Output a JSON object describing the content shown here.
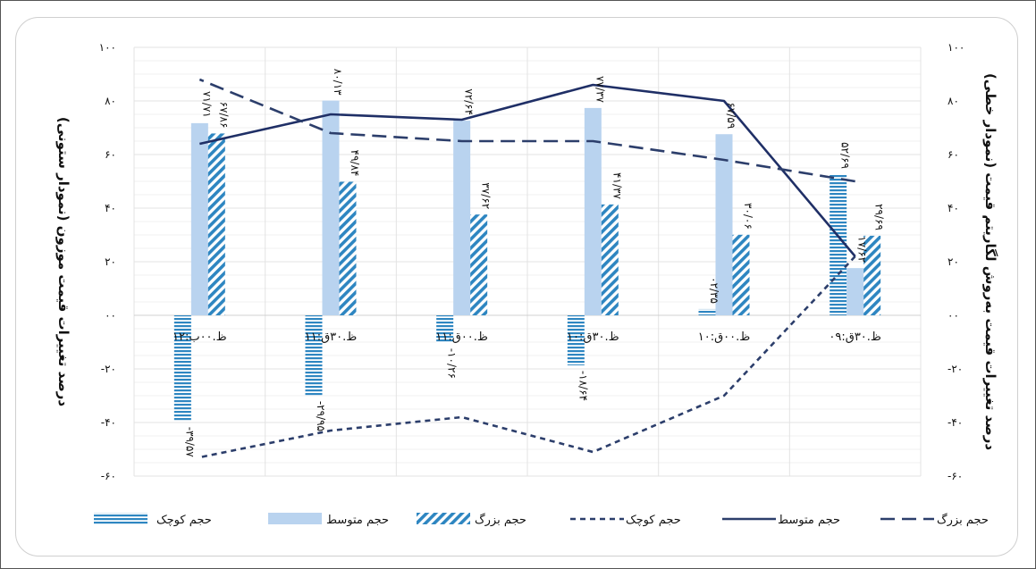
{
  "chart_data": {
    "type": "bar",
    "direction": "rtl",
    "categories": [
      "ظ.۳۰ق:۰۹",
      "ظ.۰۰ق:۱۰",
      "ظ.۳۰ق:۱۰",
      "ظ.۰۰ق:۱۱",
      "ظ.۳۰ق:۱۱",
      "ظ.۰۰ب:۱۲"
    ],
    "y_left": {
      "label": "درصد تغییرات قیمت موزون (نمودار ستونی)",
      "ylim": [
        -60,
        100
      ],
      "ticks": [
        -60,
        -40,
        -20,
        0,
        20,
        40,
        60,
        80,
        100
      ],
      "tick_labels": [
        "-۶۰",
        "-۴۰",
        "-۲۰",
        "۰۰",
        "۲۰",
        "۴۰",
        "۶۰",
        "۸۰",
        "۱۰۰"
      ]
    },
    "y_right": {
      "label": "درصد تغییرات قیمت به‌روش لگاریتم قیمت (نمودار خطی)",
      "ylim": [
        -60,
        100
      ],
      "ticks": [
        -60,
        -40,
        -20,
        0,
        20,
        40,
        60,
        80,
        100
      ],
      "tick_labels": [
        "-۶۰",
        "-۴۰",
        "-۲۰",
        "۰۰",
        "۲۰",
        "۴۰",
        "۶۰",
        "۸۰",
        "۱۰۰"
      ]
    },
    "bar_series": [
      {
        "name": "حجم کوچک",
        "color": "#2e86c1",
        "pattern": "horizontal-stripes",
        "values": [
          52.69,
          2.35,
          -18.64,
          -10.26,
          -29.95,
          -39.57
        ],
        "labels": [
          "۵۲/۶۹",
          "۰۲/۳۵",
          "-۱۸/۶۴",
          "-۱۰/۲۶",
          "-۲۹/۹۵",
          "-۳۹/۵۷"
        ]
      },
      {
        "name": "حجم متوسط",
        "color": "#b9d3ef",
        "pattern": "solid",
        "values": [
          17.62,
          67.59,
          77.37,
          72.64,
          80.13,
          71.71
        ],
        "labels": [
          "۱۷/۶۲",
          "۶۷/۵۹",
          "۷۷/۳۷",
          "۷۲/۶۴",
          "۸۰/۱۳",
          "۷۱/۷۱"
        ]
      },
      {
        "name": "حجم بزرگ",
        "color": "#2e86c1",
        "pattern": "diagonal-stripes",
        "values": [
          29.69,
          30.06,
          41.37,
          37.62,
          49.84,
          67.86
        ],
        "labels": [
          "۲۹/۶۹",
          "۳۰/۰۶",
          "۴۱/۳۷",
          "۳۷/۶۲",
          "۴۹/۸۴",
          "۶۷/۸۶"
        ]
      }
    ],
    "line_series": [
      {
        "name": "حجم کوچک",
        "style": "short-dash",
        "color": "#2c3e6b",
        "values": [
          22,
          -30,
          -51,
          -38,
          -43,
          -53
        ]
      },
      {
        "name": "حجم متوسط",
        "style": "solid",
        "color": "#1f2f66",
        "values": [
          22,
          80,
          86,
          73,
          75,
          64
        ]
      },
      {
        "name": "حجم بزرگ",
        "style": "long-dash",
        "color": "#2c3e6b",
        "values": [
          50,
          58,
          65,
          65,
          68,
          88
        ]
      }
    ],
    "legend": {
      "placement": "bottom",
      "items": [
        {
          "label": "حجم کوچک",
          "kind": "bar-horizontal-stripes"
        },
        {
          "label": "حجم متوسط",
          "kind": "bar-solid"
        },
        {
          "label": "حجم بزرگ",
          "kind": "bar-diagonal-stripes"
        },
        {
          "label": "حجم کوچک",
          "kind": "line-short-dash"
        },
        {
          "label": "حجم متوسط",
          "kind": "line-solid"
        },
        {
          "label": "حجم بزرگ",
          "kind": "line-long-dash"
        }
      ]
    },
    "grid": true
  }
}
